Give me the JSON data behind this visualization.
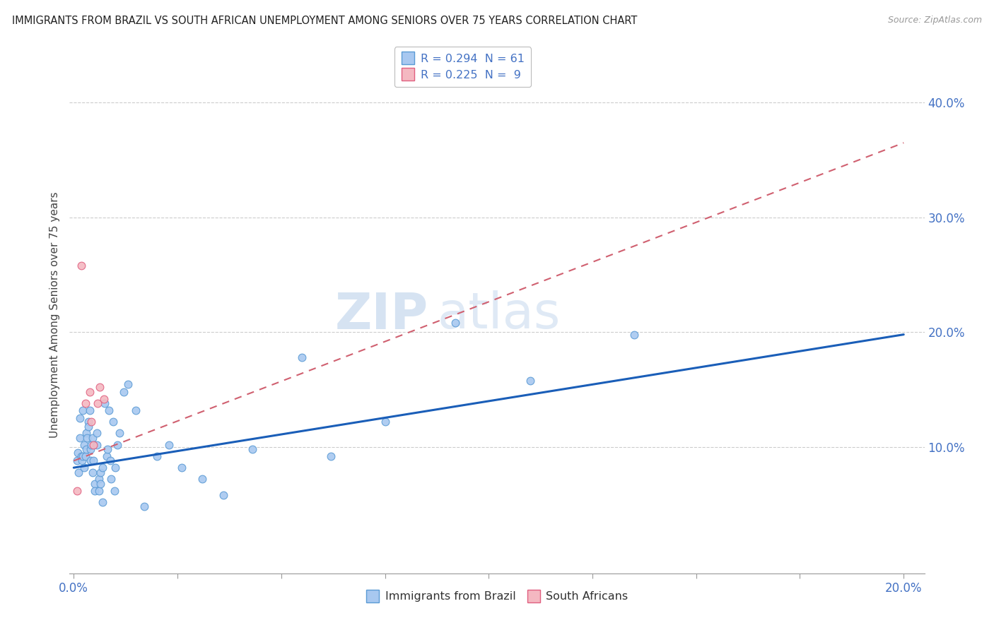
{
  "title": "IMMIGRANTS FROM BRAZIL VS SOUTH AFRICAN UNEMPLOYMENT AMONG SENIORS OVER 75 YEARS CORRELATION CHART",
  "source": "Source: ZipAtlas.com",
  "ylabel": "Unemployment Among Seniors over 75 years",
  "xlim": [
    -0.001,
    0.205
  ],
  "ylim": [
    -0.01,
    0.44
  ],
  "r_brazil": 0.294,
  "n_brazil": 61,
  "r_sa": 0.225,
  "n_sa": 9,
  "brazil_color": "#a8c8f0",
  "brazil_edge_color": "#5b9bd5",
  "sa_color": "#f4b8c1",
  "sa_edge_color": "#e06080",
  "trend_brazil_color": "#1a5eb8",
  "trend_sa_color": "#d06070",
  "watermark_zip": "ZIP",
  "watermark_atlas": "atlas",
  "watermark_color": "#c8ddf0",
  "legend_brazil": "Immigrants from Brazil",
  "legend_sa": "South Africans",
  "brazil_x": [
    0.0008,
    0.001,
    0.0012,
    0.0015,
    0.0015,
    0.0018,
    0.002,
    0.0022,
    0.0022,
    0.0025,
    0.0025,
    0.0028,
    0.003,
    0.003,
    0.0032,
    0.0035,
    0.0035,
    0.0038,
    0.004,
    0.004,
    0.0042,
    0.0045,
    0.0045,
    0.0048,
    0.005,
    0.005,
    0.0055,
    0.0055,
    0.006,
    0.006,
    0.0065,
    0.0065,
    0.007,
    0.007,
    0.0075,
    0.008,
    0.0082,
    0.0085,
    0.0088,
    0.009,
    0.0095,
    0.0098,
    0.01,
    0.0105,
    0.011,
    0.012,
    0.013,
    0.015,
    0.017,
    0.02,
    0.023,
    0.026,
    0.031,
    0.036,
    0.043,
    0.055,
    0.062,
    0.075,
    0.092,
    0.11,
    0.135
  ],
  "brazil_y": [
    0.088,
    0.095,
    0.078,
    0.125,
    0.108,
    0.092,
    0.088,
    0.092,
    0.132,
    0.082,
    0.102,
    0.092,
    0.112,
    0.098,
    0.108,
    0.122,
    0.118,
    0.132,
    0.088,
    0.098,
    0.102,
    0.078,
    0.108,
    0.088,
    0.068,
    0.062,
    0.112,
    0.102,
    0.062,
    0.072,
    0.068,
    0.078,
    0.052,
    0.082,
    0.138,
    0.092,
    0.098,
    0.132,
    0.088,
    0.072,
    0.122,
    0.062,
    0.082,
    0.102,
    0.112,
    0.148,
    0.155,
    0.132,
    0.048,
    0.092,
    0.102,
    0.082,
    0.072,
    0.058,
    0.098,
    0.178,
    0.092,
    0.122,
    0.208,
    0.158,
    0.198
  ],
  "sa_x": [
    0.0008,
    0.0018,
    0.0028,
    0.0038,
    0.0042,
    0.0048,
    0.0058,
    0.0062,
    0.0072
  ],
  "sa_y": [
    0.062,
    0.258,
    0.138,
    0.148,
    0.122,
    0.102,
    0.138,
    0.152,
    0.142
  ],
  "trend_brazil_x0": 0.0,
  "trend_brazil_x1": 0.2,
  "trend_brazil_y0": 0.082,
  "trend_brazil_y1": 0.198,
  "trend_sa_x0": 0.0,
  "trend_sa_x1": 0.2,
  "trend_sa_y0": 0.088,
  "trend_sa_y1": 0.365
}
